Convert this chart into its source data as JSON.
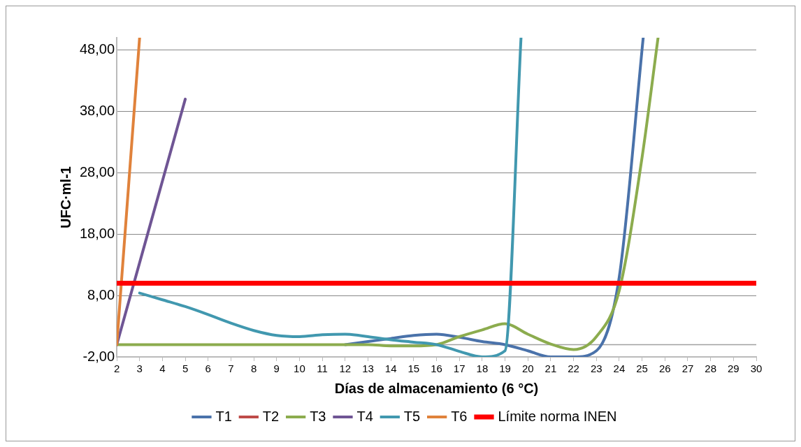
{
  "chart_data": {
    "type": "line",
    "xlabel": "Días de almacenamiento (6 °C)",
    "ylabel": "UFC·ml-1",
    "xlim": [
      2,
      30
    ],
    "xticks": [
      2,
      3,
      4,
      5,
      6,
      7,
      8,
      9,
      10,
      11,
      12,
      13,
      14,
      15,
      16,
      17,
      18,
      19,
      20,
      21,
      22,
      23,
      24,
      25,
      26,
      27,
      28,
      29,
      30
    ],
    "ylim": [
      -2,
      50
    ],
    "yticks": [
      {
        "value": -2,
        "label": "-2,00"
      },
      {
        "value": 8,
        "label": "8,00"
      },
      {
        "value": 18,
        "label": "18,00"
      },
      {
        "value": 28,
        "label": "28,00"
      },
      {
        "value": 38,
        "label": "38,00"
      },
      {
        "value": 48,
        "label": "48,00"
      }
    ],
    "grid": "y",
    "legend": "bottom",
    "marker": "none",
    "line_style": "solid",
    "ref_lines": [
      {
        "axis": "y",
        "value": 0,
        "color": "#a0a0a0"
      }
    ],
    "series": [
      {
        "name": "T1",
        "color": "#4a72aa",
        "x": [
          12,
          13,
          14,
          15,
          16,
          17,
          18,
          19,
          20,
          21,
          22,
          23,
          24,
          25.05
        ],
        "values": [
          0,
          0.5,
          1,
          1.5,
          1.7,
          1.2,
          0.5,
          0,
          -1,
          -2,
          -2,
          -1,
          11,
          50
        ]
      },
      {
        "name": "T2",
        "color": "#be4b48",
        "values": [
          null
        ]
      },
      {
        "name": "T3",
        "color": "#8cac4e",
        "x": [
          2,
          3,
          4,
          5,
          6,
          7,
          8,
          9,
          10,
          11,
          12,
          13,
          14,
          15,
          16,
          17,
          18,
          19,
          20,
          21,
          22,
          23,
          24,
          25,
          25.7
        ],
        "values": [
          0,
          0,
          0,
          0,
          0,
          0,
          0,
          0,
          0,
          0,
          0,
          0,
          -0.2,
          -0.2,
          0,
          1.3,
          2.4,
          3.4,
          1.7,
          0.1,
          -0.8,
          1.3,
          8.8,
          30.5,
          50
        ]
      },
      {
        "name": "T4",
        "color": "#6f5594",
        "x": [
          2,
          5
        ],
        "values": [
          0,
          40
        ]
      },
      {
        "name": "T5",
        "color": "#4198af",
        "x": [
          3,
          4,
          5,
          6,
          7,
          8,
          9,
          10,
          11,
          12,
          13,
          14,
          15,
          16,
          17,
          18,
          19,
          19.7
        ],
        "values": [
          8.4,
          7.3,
          6.2,
          4.9,
          3.5,
          2.3,
          1.5,
          1.3,
          1.6,
          1.7,
          1.3,
          0.8,
          0.4,
          0,
          -1.1,
          -2,
          -1,
          50
        ]
      },
      {
        "name": "T6",
        "color": "#e0823b",
        "x": [
          2,
          3
        ],
        "values": [
          0,
          50
        ]
      },
      {
        "name": "Límite norma INEN",
        "color": "#ff0000",
        "x": [
          2,
          30
        ],
        "values": [
          10,
          10
        ]
      }
    ]
  }
}
